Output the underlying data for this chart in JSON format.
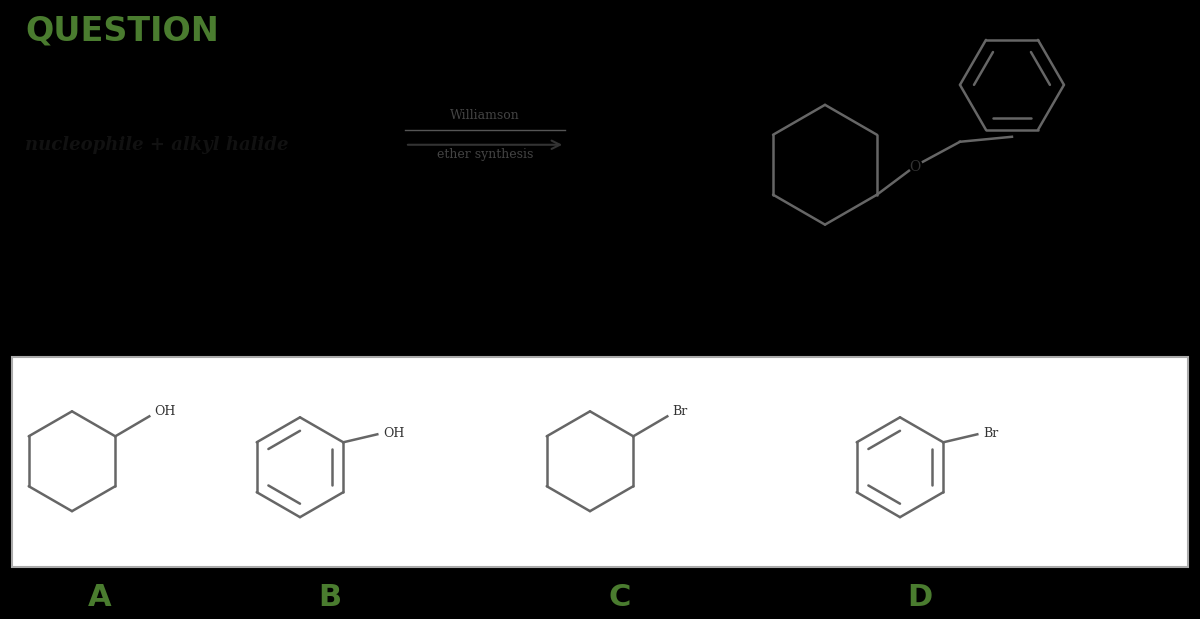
{
  "title": "QUESTION",
  "title_color": "#4a7c2f",
  "title_fontsize": 24,
  "reaction_text": "nucleophile + alkyl halide",
  "arrow_label_top": "Williamson",
  "arrow_label_bottom": "ether synthesis",
  "background_top": "#ffffff",
  "background_bottom": "#000000",
  "answer_labels": [
    "A",
    "B",
    "C",
    "D"
  ],
  "answer_label_color": "#4a7c2f",
  "answer_label_fontsize": 22,
  "line_color": "#666666",
  "line_width": 1.8
}
